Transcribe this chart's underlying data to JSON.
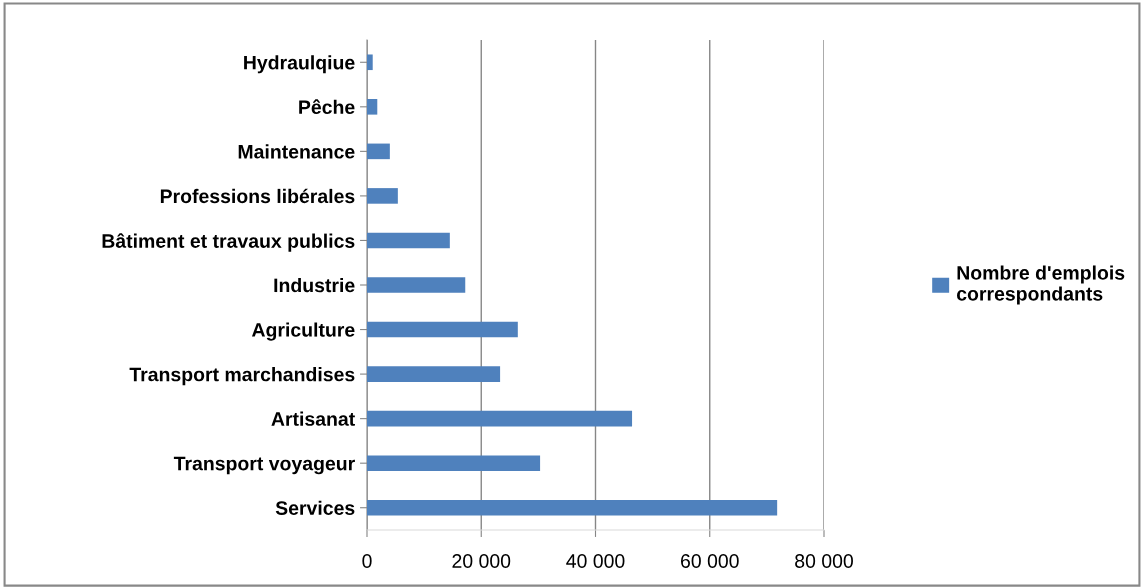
{
  "chart_data": {
    "type": "bar",
    "orientation": "horizontal",
    "categories": [
      "Hydraulqiue",
      "Pêche",
      "Maintenance",
      "Professions libérales",
      "Bâtiment et travaux publics",
      "Industrie",
      "Agriculture",
      "Transport marchandises",
      "Artisanat",
      "Transport voyageur",
      "Services"
    ],
    "series": [
      {
        "name": "Nombre d'emplois\ncorrespondants",
        "color": "#4f81bd",
        "values": [
          1000,
          1800,
          4000,
          5400,
          14500,
          17200,
          26400,
          23300,
          46400,
          30300,
          71800
        ]
      }
    ],
    "xlim": [
      0,
      80000
    ],
    "xticks": [
      0,
      {
        "value": 20000,
        "label": "20 000"
      },
      {
        "value": 40000,
        "label": "40 000"
      },
      {
        "value": 60000,
        "label": "60 000"
      },
      {
        "value": 80000,
        "label": "80 000"
      }
    ],
    "grid": "x",
    "legend": "right"
  }
}
